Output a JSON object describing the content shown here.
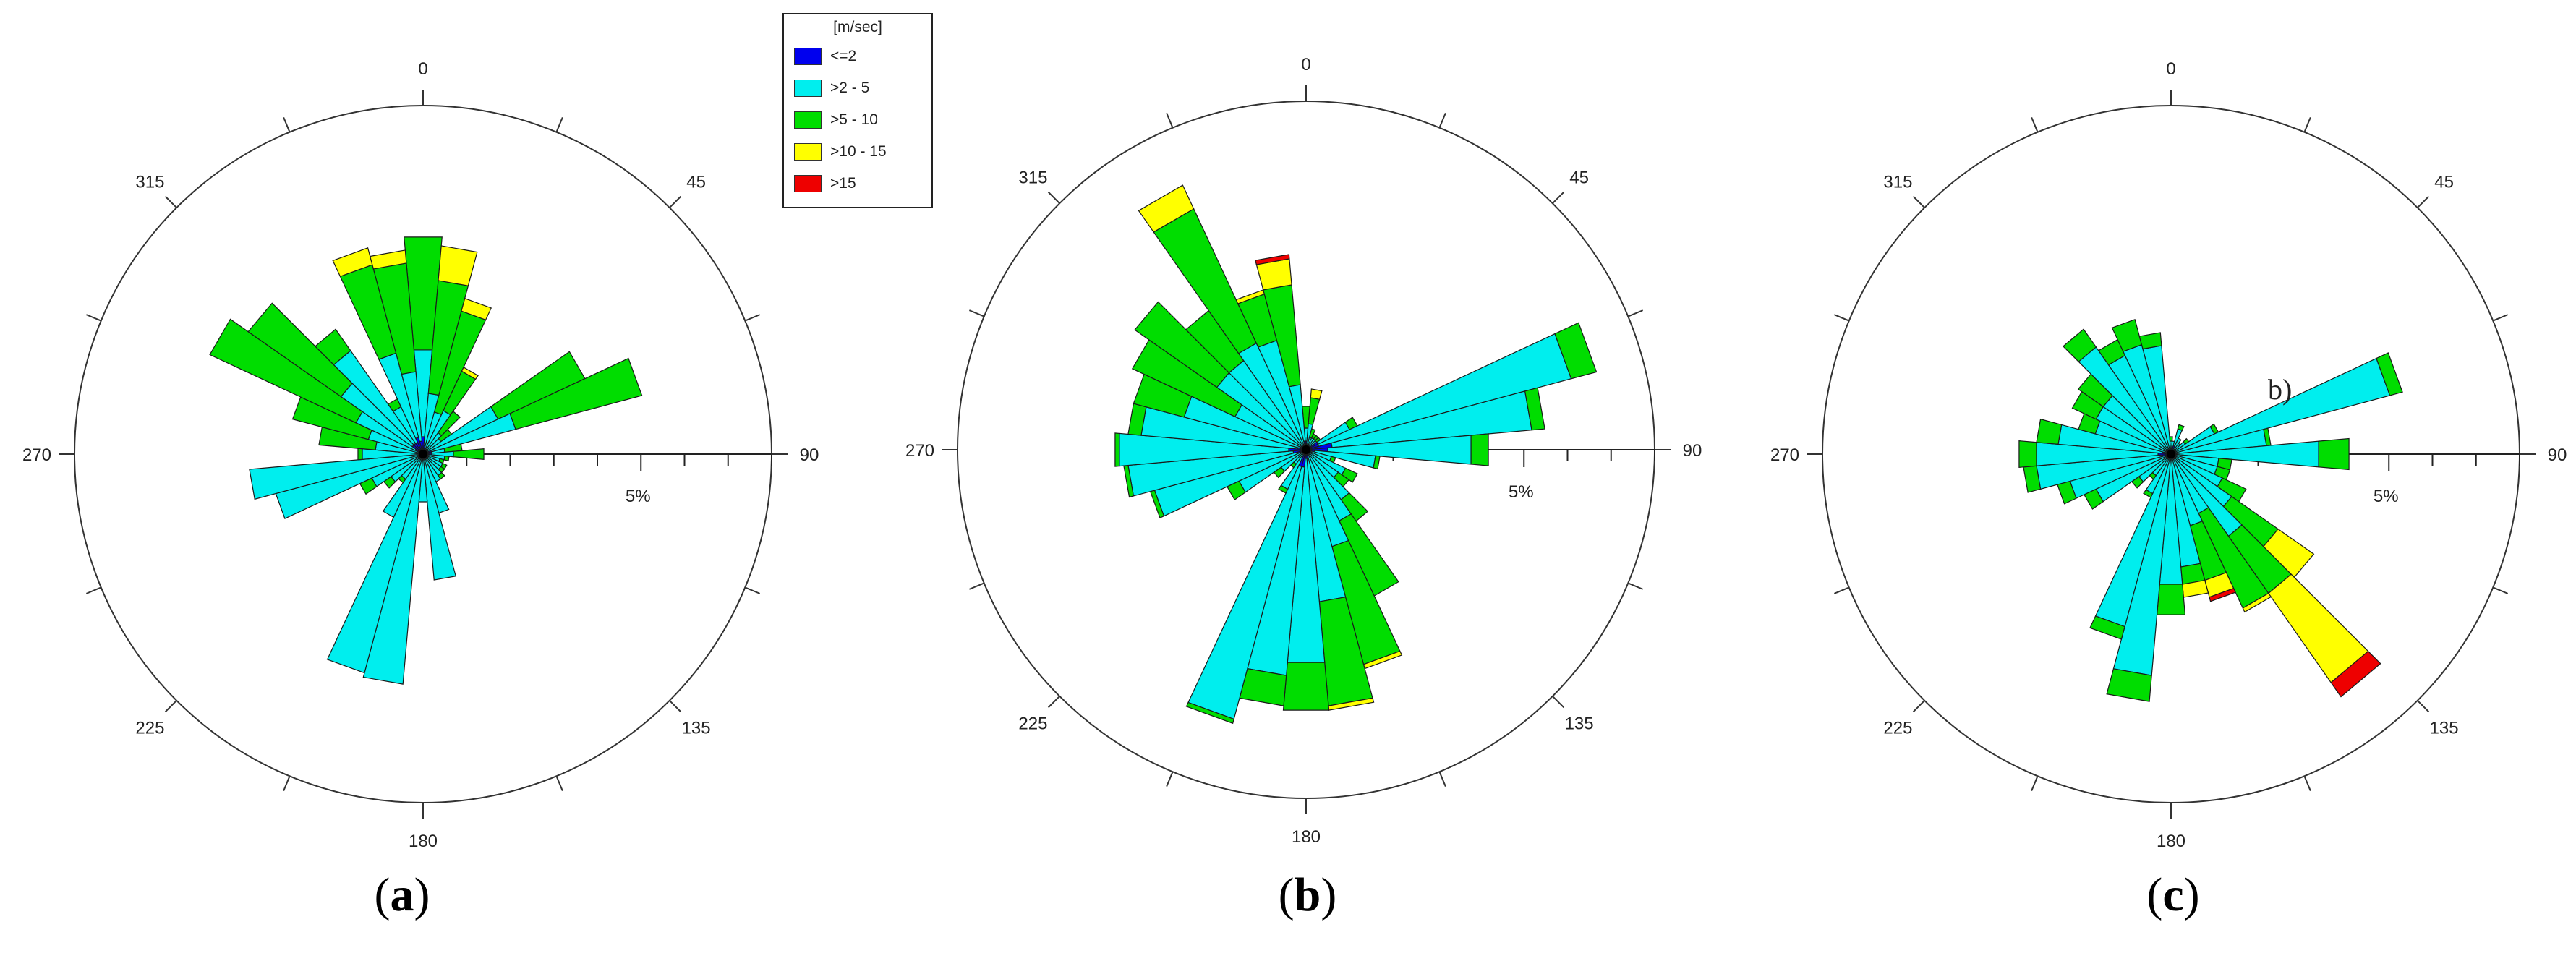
{
  "figure": {
    "panels": [
      {
        "label_open": "(",
        "label_letter": "a",
        "label_close": ")"
      },
      {
        "label_open": "(",
        "label_letter": "b",
        "label_close": ")"
      },
      {
        "label_open": "(",
        "label_letter": "c",
        "label_close": ")"
      }
    ],
    "panel_c_annotation": "b)"
  },
  "legend": {
    "title": "[m/sec]",
    "items": [
      {
        "label": "<=2",
        "color": "#0000ee"
      },
      {
        "label": ">2 - 5",
        "color": "#00eeee"
      },
      {
        "label": ">5 - 10",
        "color": "#00dd00"
      },
      {
        "label": ">10 - 15",
        "color": "#ffff00"
      },
      {
        "label": ">15",
        "color": "#ee0000"
      }
    ]
  },
  "chart_data": [
    {
      "type": "bar",
      "subtype": "wind-rose",
      "panel": "a",
      "direction_labels": [
        "0",
        "45",
        "90",
        "135",
        "180",
        "225",
        "270",
        "315"
      ],
      "radial_label": "5%",
      "rmax_percent": 8,
      "sector_width_deg": 10,
      "speed_classes": [
        "<=2",
        ">2 - 5",
        ">5 - 10",
        ">10 - 15",
        ">15"
      ],
      "sectors": [
        {
          "dir": 0,
          "values": [
            0.4,
            2.0,
            2.6,
            0.0,
            0.0
          ]
        },
        {
          "dir": 10,
          "values": [
            0.2,
            1.2,
            2.6,
            0.8,
            0.0
          ]
        },
        {
          "dir": 20,
          "values": [
            0.1,
            0.9,
            2.4,
            0.3,
            0.0
          ]
        },
        {
          "dir": 30,
          "values": [
            0.1,
            1.0,
            1.0,
            0.1,
            0.0
          ]
        },
        {
          "dir": 40,
          "values": [
            0.1,
            0.5,
            0.6,
            0.0,
            0.0
          ]
        },
        {
          "dir": 50,
          "values": [
            0.1,
            0.4,
            0.3,
            0.0,
            0.0
          ]
        },
        {
          "dir": 60,
          "values": [
            0.1,
            1.8,
            2.2,
            0.0,
            0.0
          ]
        },
        {
          "dir": 70,
          "values": [
            0.2,
            2.0,
            3.0,
            0.0,
            0.0
          ]
        },
        {
          "dir": 80,
          "values": [
            0.2,
            0.3,
            0.4,
            0.0,
            0.0
          ]
        },
        {
          "dir": 90,
          "values": [
            0.2,
            0.5,
            0.7,
            0.0,
            0.0
          ]
        },
        {
          "dir": 100,
          "values": [
            0.1,
            0.4,
            0.1,
            0.0,
            0.0
          ]
        },
        {
          "dir": 110,
          "values": [
            0.1,
            0.3,
            0.1,
            0.0,
            0.0
          ]
        },
        {
          "dir": 120,
          "values": [
            0.1,
            0.4,
            0.1,
            0.0,
            0.0
          ]
        },
        {
          "dir": 130,
          "values": [
            0.1,
            0.4,
            0.1,
            0.0,
            0.0
          ]
        },
        {
          "dir": 140,
          "values": [
            0.1,
            0.5,
            0.1,
            0.0,
            0.0
          ]
        },
        {
          "dir": 150,
          "values": [
            0.1,
            0.6,
            0.0,
            0.0,
            0.0
          ]
        },
        {
          "dir": 160,
          "values": [
            0.1,
            1.3,
            0.0,
            0.0,
            0.0
          ]
        },
        {
          "dir": 170,
          "values": [
            0.1,
            2.8,
            0.0,
            0.0,
            0.0
          ]
        },
        {
          "dir": 180,
          "values": [
            0.1,
            1.0,
            0.0,
            0.0,
            0.0
          ]
        },
        {
          "dir": 190,
          "values": [
            0.1,
            5.2,
            0.0,
            0.0,
            0.0
          ]
        },
        {
          "dir": 200,
          "values": [
            0.1,
            5.1,
            0.0,
            0.0,
            0.0
          ]
        },
        {
          "dir": 210,
          "values": [
            0.1,
            1.5,
            0.0,
            0.0,
            0.0
          ]
        },
        {
          "dir": 220,
          "values": [
            0.1,
            0.6,
            0.1,
            0.0,
            0.0
          ]
        },
        {
          "dir": 230,
          "values": [
            0.1,
            0.8,
            0.2,
            0.0,
            0.0
          ]
        },
        {
          "dir": 240,
          "values": [
            0.1,
            1.2,
            0.3,
            0.0,
            0.0
          ]
        },
        {
          "dir": 250,
          "values": [
            0.1,
            3.4,
            0.0,
            0.0,
            0.0
          ]
        },
        {
          "dir": 260,
          "values": [
            0.1,
            3.9,
            0.0,
            0.0,
            0.0
          ]
        },
        {
          "dir": 270,
          "values": [
            0.1,
            1.3,
            0.1,
            0.0,
            0.0
          ]
        },
        {
          "dir": 280,
          "values": [
            0.1,
            1.0,
            1.3,
            0.0,
            0.0
          ]
        },
        {
          "dir": 290,
          "values": [
            0.1,
            1.2,
            1.8,
            0.0,
            0.0
          ]
        },
        {
          "dir": 300,
          "values": [
            0.2,
            1.5,
            3.7,
            0.0,
            0.0
          ]
        },
        {
          "dir": 310,
          "values": [
            0.3,
            2.0,
            2.6,
            0.0,
            0.0
          ]
        },
        {
          "dir": 320,
          "values": [
            0.3,
            2.6,
            0.6,
            0.0,
            0.0
          ]
        },
        {
          "dir": 330,
          "values": [
            0.3,
            0.9,
            0.2,
            0.0,
            0.0
          ]
        },
        {
          "dir": 340,
          "values": [
            0.4,
            2.0,
            2.1,
            0.4,
            0.0
          ]
        },
        {
          "dir": 350,
          "values": [
            0.3,
            1.6,
            2.5,
            0.3,
            0.0
          ]
        }
      ]
    },
    {
      "type": "bar",
      "subtype": "wind-rose",
      "panel": "b",
      "direction_labels": [
        "0",
        "45",
        "90",
        "135",
        "180",
        "225",
        "270",
        "315"
      ],
      "radial_label": "5%",
      "rmax_percent": 8,
      "sector_width_deg": 10,
      "speed_classes": [
        "<=2",
        ">2 - 5",
        ">5 - 10",
        ">10 - 15",
        ">15"
      ],
      "sectors": [
        {
          "dir": 0,
          "values": [
            0.2,
            0.3,
            0.5,
            0.0,
            0.0
          ]
        },
        {
          "dir": 10,
          "values": [
            0.1,
            0.5,
            0.6,
            0.2,
            0.0
          ]
        },
        {
          "dir": 20,
          "values": [
            0.1,
            0.2,
            0.2,
            0.0,
            0.0
          ]
        },
        {
          "dir": 30,
          "values": [
            0.1,
            0.2,
            0.1,
            0.0,
            0.0
          ]
        },
        {
          "dir": 40,
          "values": [
            0.1,
            0.2,
            0.1,
            0.0,
            0.0
          ]
        },
        {
          "dir": 50,
          "values": [
            0.1,
            0.2,
            0.1,
            0.0,
            0.0
          ]
        },
        {
          "dir": 60,
          "values": [
            0.3,
            0.8,
            0.2,
            0.0,
            0.0
          ]
        },
        {
          "dir": 70,
          "values": [
            0.3,
            6.0,
            0.6,
            0.0,
            0.0
          ]
        },
        {
          "dir": 80,
          "values": [
            0.6,
            4.6,
            0.3,
            0.0,
            0.0
          ]
        },
        {
          "dir": 90,
          "values": [
            0.5,
            3.3,
            0.4,
            0.0,
            0.0
          ]
        },
        {
          "dir": 100,
          "values": [
            0.2,
            1.4,
            0.1,
            0.0,
            0.0
          ]
        },
        {
          "dir": 110,
          "values": [
            0.1,
            0.5,
            0.1,
            0.0,
            0.0
          ]
        },
        {
          "dir": 120,
          "values": [
            0.1,
            0.9,
            0.3,
            0.0,
            0.0
          ]
        },
        {
          "dir": 130,
          "values": [
            0.1,
            0.8,
            0.3,
            0.0,
            0.0
          ]
        },
        {
          "dir": 140,
          "values": [
            0.1,
            1.3,
            0.6,
            0.0,
            0.0
          ]
        },
        {
          "dir": 150,
          "values": [
            0.1,
            1.7,
            1.9,
            0.0,
            0.0
          ]
        },
        {
          "dir": 160,
          "values": [
            0.1,
            2.2,
            2.8,
            0.1,
            0.0
          ]
        },
        {
          "dir": 170,
          "values": [
            0.2,
            3.3,
            2.4,
            0.1,
            0.0
          ]
        },
        {
          "dir": 180,
          "values": [
            0.2,
            4.7,
            1.1,
            0.0,
            0.0
          ]
        },
        {
          "dir": 190,
          "values": [
            0.4,
            4.8,
            0.7,
            0.0,
            0.0
          ]
        },
        {
          "dir": 200,
          "values": [
            0.4,
            6.0,
            0.1,
            0.0,
            0.0
          ]
        },
        {
          "dir": 210,
          "values": [
            0.1,
            0.9,
            0.1,
            0.0,
            0.0
          ]
        },
        {
          "dir": 220,
          "values": [
            0.1,
            0.3,
            0.1,
            0.0,
            0.0
          ]
        },
        {
          "dir": 230,
          "values": [
            0.1,
            0.6,
            0.2,
            0.0,
            0.0
          ]
        },
        {
          "dir": 240,
          "values": [
            0.1,
            1.6,
            0.3,
            0.0,
            0.0
          ]
        },
        {
          "dir": 250,
          "values": [
            0.2,
            3.4,
            0.1,
            0.0,
            0.0
          ]
        },
        {
          "dir": 260,
          "values": [
            0.3,
            3.8,
            0.1,
            0.0,
            0.0
          ]
        },
        {
          "dir": 270,
          "values": [
            0.4,
            3.9,
            0.1,
            0.0,
            0.0
          ]
        },
        {
          "dir": 280,
          "values": [
            0.2,
            3.6,
            0.3,
            0.0,
            0.0
          ]
        },
        {
          "dir": 290,
          "values": [
            0.1,
            2.8,
            1.2,
            0.0,
            0.0
          ]
        },
        {
          "dir": 300,
          "values": [
            0.1,
            1.7,
            2.6,
            0.0,
            0.0
          ]
        },
        {
          "dir": 310,
          "values": [
            0.1,
            2.4,
            2.3,
            0.0,
            0.0
          ]
        },
        {
          "dir": 320,
          "values": [
            0.1,
            2.4,
            1.4,
            0.0,
            0.0
          ]
        },
        {
          "dir": 330,
          "values": [
            0.1,
            2.6,
            3.4,
            0.6,
            0.0
          ]
        },
        {
          "dir": 340,
          "values": [
            0.1,
            2.5,
            1.1,
            0.1,
            0.0
          ]
        },
        {
          "dir": 350,
          "values": [
            0.2,
            1.3,
            2.3,
            0.6,
            0.1
          ]
        }
      ]
    },
    {
      "type": "bar",
      "subtype": "wind-rose",
      "panel": "c",
      "direction_labels": [
        "0",
        "45",
        "90",
        "135",
        "180",
        "225",
        "270",
        "315"
      ],
      "radial_label": "5%",
      "rmax_percent": 8,
      "sector_width_deg": 10,
      "speed_classes": [
        "<=2",
        ">2 - 5",
        ">5 - 10",
        ">10 - 15",
        ">15"
      ],
      "sectors": [
        {
          "dir": 0,
          "values": [
            0.1,
            0.2,
            0.1,
            0.0,
            0.0
          ]
        },
        {
          "dir": 10,
          "values": [
            0.1,
            0.2,
            0.0,
            0.0,
            0.0
          ]
        },
        {
          "dir": 20,
          "values": [
            0.2,
            0.4,
            0.1,
            0.0,
            0.0
          ]
        },
        {
          "dir": 30,
          "values": [
            0.1,
            0.3,
            0.0,
            0.0,
            0.0
          ]
        },
        {
          "dir": 40,
          "values": [
            0.1,
            0.2,
            0.0,
            0.0,
            0.0
          ]
        },
        {
          "dir": 50,
          "values": [
            0.1,
            0.3,
            0.1,
            0.0,
            0.0
          ]
        },
        {
          "dir": 60,
          "values": [
            0.1,
            1.0,
            0.1,
            0.0,
            0.0
          ]
        },
        {
          "dir": 70,
          "values": [
            0.1,
            5.1,
            0.3,
            0.0,
            0.0
          ]
        },
        {
          "dir": 80,
          "values": [
            0.1,
            2.1,
            0.1,
            0.0,
            0.0
          ]
        },
        {
          "dir": 90,
          "values": [
            0.1,
            3.3,
            0.7,
            0.0,
            0.0
          ]
        },
        {
          "dir": 100,
          "values": [
            0.1,
            1.0,
            0.3,
            0.0,
            0.0
          ]
        },
        {
          "dir": 110,
          "values": [
            0.1,
            1.0,
            0.3,
            0.0,
            0.0
          ]
        },
        {
          "dir": 120,
          "values": [
            0.1,
            1.2,
            0.6,
            0.0,
            0.0
          ]
        },
        {
          "dir": 130,
          "values": [
            0.1,
            1.6,
            1.3,
            1.0,
            0.0
          ]
        },
        {
          "dir": 140,
          "values": [
            0.1,
            2.2,
            1.6,
            2.5,
            0.4
          ]
        },
        {
          "dir": 150,
          "values": [
            0.1,
            1.4,
            2.4,
            0.1,
            0.0
          ]
        },
        {
          "dir": 160,
          "values": [
            0.1,
            1.6,
            1.3,
            0.4,
            0.1
          ]
        },
        {
          "dir": 170,
          "values": [
            0.1,
            2.5,
            0.4,
            0.3,
            0.0
          ]
        },
        {
          "dir": 180,
          "values": [
            0.1,
            2.9,
            0.7,
            0.0,
            0.0
          ]
        },
        {
          "dir": 190,
          "values": [
            0.1,
            5.0,
            0.6,
            0.0,
            0.0
          ]
        },
        {
          "dir": 200,
          "values": [
            0.1,
            4.0,
            0.3,
            0.0,
            0.0
          ]
        },
        {
          "dir": 210,
          "values": [
            0.1,
            0.9,
            0.1,
            0.0,
            0.0
          ]
        },
        {
          "dir": 220,
          "values": [
            0.1,
            0.5,
            0.1,
            0.0,
            0.0
          ]
        },
        {
          "dir": 230,
          "values": [
            0.1,
            0.8,
            0.2,
            0.0,
            0.0
          ]
        },
        {
          "dir": 240,
          "values": [
            0.1,
            1.8,
            0.3,
            0.0,
            0.0
          ]
        },
        {
          "dir": 250,
          "values": [
            0.1,
            2.3,
            0.3,
            0.0,
            0.0
          ]
        },
        {
          "dir": 260,
          "values": [
            0.2,
            2.9,
            0.3,
            0.0,
            0.0
          ]
        },
        {
          "dir": 270,
          "values": [
            0.3,
            2.8,
            0.4,
            0.0,
            0.0
          ]
        },
        {
          "dir": 280,
          "values": [
            0.2,
            2.4,
            0.5,
            0.0,
            0.0
          ]
        },
        {
          "dir": 290,
          "values": [
            0.1,
            1.7,
            0.4,
            0.0,
            0.0
          ]
        },
        {
          "dir": 300,
          "values": [
            0.1,
            1.8,
            0.6,
            0.0,
            0.0
          ]
        },
        {
          "dir": 310,
          "values": [
            0.1,
            1.8,
            0.7,
            0.0,
            0.0
          ]
        },
        {
          "dir": 320,
          "values": [
            0.1,
            2.9,
            0.5,
            0.0,
            0.0
          ]
        },
        {
          "dir": 330,
          "values": [
            0.1,
            2.4,
            0.4,
            0.0,
            0.0
          ]
        },
        {
          "dir": 340,
          "values": [
            0.1,
            2.5,
            0.6,
            0.0,
            0.0
          ]
        },
        {
          "dir": 350,
          "values": [
            0.1,
            2.4,
            0.3,
            0.0,
            0.0
          ]
        }
      ]
    }
  ]
}
